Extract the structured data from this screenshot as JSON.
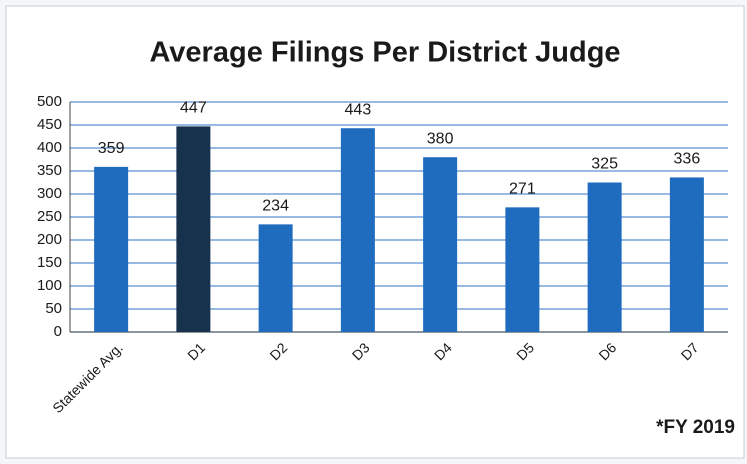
{
  "chart_data": {
    "type": "bar",
    "title": "Average Filings Per District Judge",
    "annotation": "*FY 2019",
    "categories": [
      "Statewide Avg.",
      "D1",
      "D2",
      "D3",
      "D4",
      "D5",
      "D6",
      "D7"
    ],
    "values": [
      359,
      447,
      234,
      443,
      380,
      271,
      325,
      336
    ],
    "colors": [
      "#1f6cbf",
      "#17324d",
      "#1f6cbf",
      "#1f6cbf",
      "#1f6cbf",
      "#1f6cbf",
      "#1f6cbf",
      "#1f6cbf"
    ],
    "ylim": [
      0,
      500
    ],
    "yticks": [
      0,
      50,
      100,
      150,
      200,
      250,
      300,
      350,
      400,
      450,
      500
    ],
    "grid": true
  }
}
